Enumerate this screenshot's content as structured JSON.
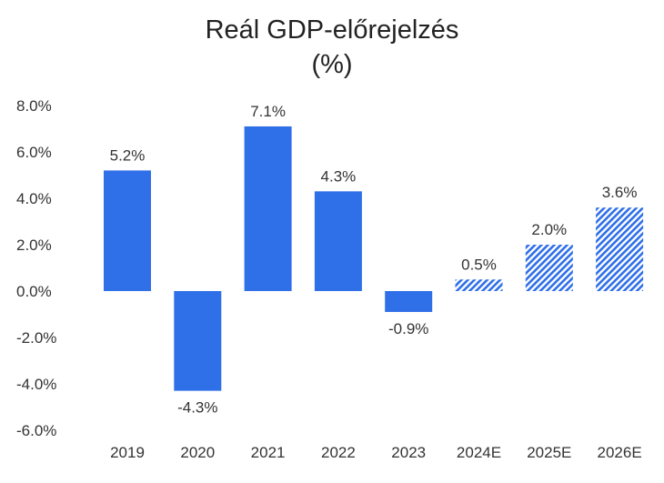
{
  "chart_data": {
    "type": "bar",
    "title": "Reál GDP-előrejelzés",
    "subtitle": "(%)",
    "categories": [
      "2019",
      "2020",
      "2021",
      "2022",
      "2023",
      "2024E",
      "2025E",
      "2026E"
    ],
    "values": [
      5.2,
      -4.3,
      7.1,
      4.3,
      -0.9,
      0.5,
      2.0,
      3.6
    ],
    "value_labels": [
      "5.2%",
      "-4.3%",
      "7.1%",
      "4.3%",
      "-0.9%",
      "0.5%",
      "2.0%",
      "3.6%"
    ],
    "estimate": [
      false,
      false,
      false,
      false,
      false,
      true,
      true,
      true
    ],
    "yticks": [
      8,
      6,
      4,
      2,
      0,
      -2,
      -4,
      -6
    ],
    "ytick_labels": [
      "8.0%",
      "6.0%",
      "4.0%",
      "2.0%",
      "0.0%",
      "-2.0%",
      "-4.0%",
      "-6.0%"
    ],
    "ylim": [
      -6,
      8
    ],
    "xlabel": "",
    "ylabel": "",
    "grid": false,
    "bar_color": "#2f6fe8",
    "hatch_color": "#2f6fe8"
  }
}
